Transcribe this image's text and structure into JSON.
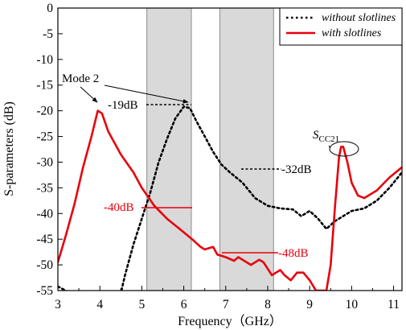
{
  "colors": {
    "with": "#e8000b",
    "without": "#000000",
    "band": "#d9d9d9",
    "annotation_red": "#e8000b"
  },
  "chart_data": {
    "type": "line",
    "xlabel": "Frequency（GHz）",
    "ylabel": "S-parameters (dB)",
    "xlim": [
      3,
      11.2
    ],
    "ylim": [
      -55,
      0
    ],
    "xticks": [
      "3",
      "4",
      "5",
      "6",
      "7",
      "8",
      "9",
      "10",
      "11"
    ],
    "yticks": [
      "0",
      "-5",
      "-10",
      "-15",
      "-20",
      "-25",
      "-30",
      "-35",
      "-40",
      "-45",
      "-50",
      "-55"
    ],
    "grid": false,
    "legend_position": "top-right",
    "shaded_bands": [
      [
        5.12,
        6.18
      ],
      [
        6.86,
        8.14
      ]
    ],
    "series": [
      {
        "name": "without slotlines",
        "style": "dotted",
        "points": [
          [
            3.0,
            -54.2
          ],
          [
            3.3,
            -55.5
          ],
          [
            4.5,
            -55.5
          ],
          [
            4.6,
            -52
          ],
          [
            4.8,
            -46
          ],
          [
            5.0,
            -41
          ],
          [
            5.2,
            -36
          ],
          [
            5.4,
            -30
          ],
          [
            5.6,
            -25.5
          ],
          [
            5.8,
            -21.5
          ],
          [
            6.0,
            -19.2
          ],
          [
            6.15,
            -19.5
          ],
          [
            6.3,
            -22
          ],
          [
            6.5,
            -25
          ],
          [
            6.7,
            -28
          ],
          [
            6.9,
            -30.5
          ],
          [
            7.1,
            -32
          ],
          [
            7.4,
            -34
          ],
          [
            7.7,
            -37
          ],
          [
            8.0,
            -38.5
          ],
          [
            8.3,
            -39
          ],
          [
            8.6,
            -39.2
          ],
          [
            8.8,
            -40.5
          ],
          [
            9.0,
            -39.5
          ],
          [
            9.2,
            -41
          ],
          [
            9.4,
            -43
          ],
          [
            9.6,
            -41.5
          ],
          [
            9.8,
            -40.5
          ],
          [
            10.0,
            -39.5
          ],
          [
            10.3,
            -39
          ],
          [
            10.6,
            -37.5
          ],
          [
            10.9,
            -35
          ],
          [
            11.2,
            -32
          ]
        ]
      },
      {
        "name": "with slotlines",
        "style": "solid",
        "points": [
          [
            3.0,
            -49.5
          ],
          [
            3.2,
            -44
          ],
          [
            3.4,
            -38
          ],
          [
            3.6,
            -31
          ],
          [
            3.8,
            -25
          ],
          [
            3.95,
            -20
          ],
          [
            4.05,
            -20.5
          ],
          [
            4.2,
            -24
          ],
          [
            4.5,
            -28.5
          ],
          [
            4.8,
            -32
          ],
          [
            5.0,
            -35
          ],
          [
            5.3,
            -38.5
          ],
          [
            5.6,
            -41
          ],
          [
            5.9,
            -43
          ],
          [
            6.2,
            -45
          ],
          [
            6.4,
            -46.5
          ],
          [
            6.5,
            -47
          ],
          [
            6.7,
            -46.5
          ],
          [
            6.8,
            -48
          ],
          [
            7.0,
            -48.5
          ],
          [
            7.2,
            -49.2
          ],
          [
            7.3,
            -48.5
          ],
          [
            7.4,
            -49
          ],
          [
            7.6,
            -50
          ],
          [
            7.8,
            -49
          ],
          [
            7.9,
            -49.5
          ],
          [
            8.1,
            -52
          ],
          [
            8.3,
            -51
          ],
          [
            8.4,
            -52
          ],
          [
            8.55,
            -53
          ],
          [
            8.7,
            -51.5
          ],
          [
            8.85,
            -51.5
          ],
          [
            9.0,
            -53
          ],
          [
            9.15,
            -55
          ],
          [
            9.4,
            -55
          ],
          [
            9.5,
            -50
          ],
          [
            9.6,
            -39
          ],
          [
            9.7,
            -29
          ],
          [
            9.75,
            -27
          ],
          [
            9.8,
            -27
          ],
          [
            9.9,
            -30
          ],
          [
            10.0,
            -34
          ],
          [
            10.15,
            -36.5
          ],
          [
            10.3,
            -37
          ],
          [
            10.6,
            -35.5
          ],
          [
            10.9,
            -33
          ],
          [
            11.2,
            -31
          ]
        ]
      }
    ],
    "annotations": {
      "mode2": "Mode 2",
      "db19": "-19dB",
      "db32": "-32dB",
      "db40": "-40dB",
      "db48": "-48dB",
      "scc21_main": "S",
      "scc21_sub": "CC21"
    }
  }
}
